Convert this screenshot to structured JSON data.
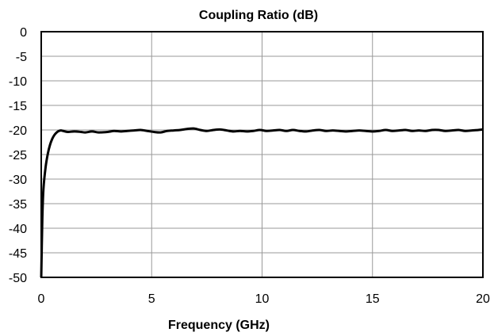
{
  "chart_data": {
    "type": "line",
    "title": "Coupling Ratio (dB)",
    "xlabel": "Frequency  (GHz)",
    "ylabel": "",
    "xlim": [
      0,
      20
    ],
    "ylim": [
      -50,
      0
    ],
    "x_ticks": [
      "0",
      "5",
      "10",
      "15",
      "20"
    ],
    "y_ticks": [
      "0",
      "-5",
      "-10",
      "-15",
      "-20",
      "-25",
      "-30",
      "-35",
      "-40",
      "-45",
      "-50"
    ],
    "grid": true,
    "legend": "none",
    "colors": {
      "line": "#000000",
      "grid": "#999999",
      "frame": "#000000"
    },
    "series": [
      {
        "x": [
          0.0,
          0.05,
          0.1,
          0.2,
          0.3,
          0.4,
          0.5,
          0.6,
          0.7,
          0.8,
          0.9,
          1.0,
          1.2,
          1.5,
          1.8,
          2.0,
          2.3,
          2.6,
          3.0,
          3.3,
          3.6,
          3.9,
          4.2,
          4.5,
          4.8,
          5.1,
          5.4,
          5.7,
          6.0,
          6.3,
          6.6,
          6.9,
          7.2,
          7.5,
          7.8,
          8.1,
          8.4,
          8.7,
          9.0,
          9.3,
          9.6,
          9.9,
          10.2,
          10.5,
          10.8,
          11.1,
          11.4,
          11.7,
          12.0,
          12.3,
          12.6,
          12.9,
          13.2,
          13.5,
          13.8,
          14.1,
          14.4,
          14.7,
          15.0,
          15.3,
          15.6,
          15.9,
          16.2,
          16.5,
          16.8,
          17.1,
          17.4,
          17.7,
          18.0,
          18.3,
          18.6,
          18.9,
          19.2,
          19.5,
          19.8,
          20.0
        ],
        "values": [
          -50.0,
          -38.0,
          -32.0,
          -27.5,
          -24.8,
          -23.0,
          -21.8,
          -21.0,
          -20.5,
          -20.2,
          -20.1,
          -20.2,
          -20.4,
          -20.3,
          -20.4,
          -20.5,
          -20.3,
          -20.5,
          -20.4,
          -20.2,
          -20.3,
          -20.2,
          -20.1,
          -20.0,
          -20.2,
          -20.4,
          -20.5,
          -20.2,
          -20.1,
          -20.0,
          -19.8,
          -19.7,
          -20.0,
          -20.2,
          -20.0,
          -19.9,
          -20.1,
          -20.3,
          -20.2,
          -20.3,
          -20.2,
          -20.0,
          -20.2,
          -20.1,
          -20.0,
          -20.2,
          -20.0,
          -20.2,
          -20.3,
          -20.1,
          -20.0,
          -20.2,
          -20.1,
          -20.2,
          -20.3,
          -20.2,
          -20.1,
          -20.2,
          -20.3,
          -20.2,
          -20.0,
          -20.2,
          -20.1,
          -20.0,
          -20.2,
          -20.1,
          -20.2,
          -20.0,
          -20.0,
          -20.2,
          -20.1,
          -20.0,
          -20.2,
          -20.1,
          -20.0,
          -19.9
        ]
      }
    ]
  }
}
